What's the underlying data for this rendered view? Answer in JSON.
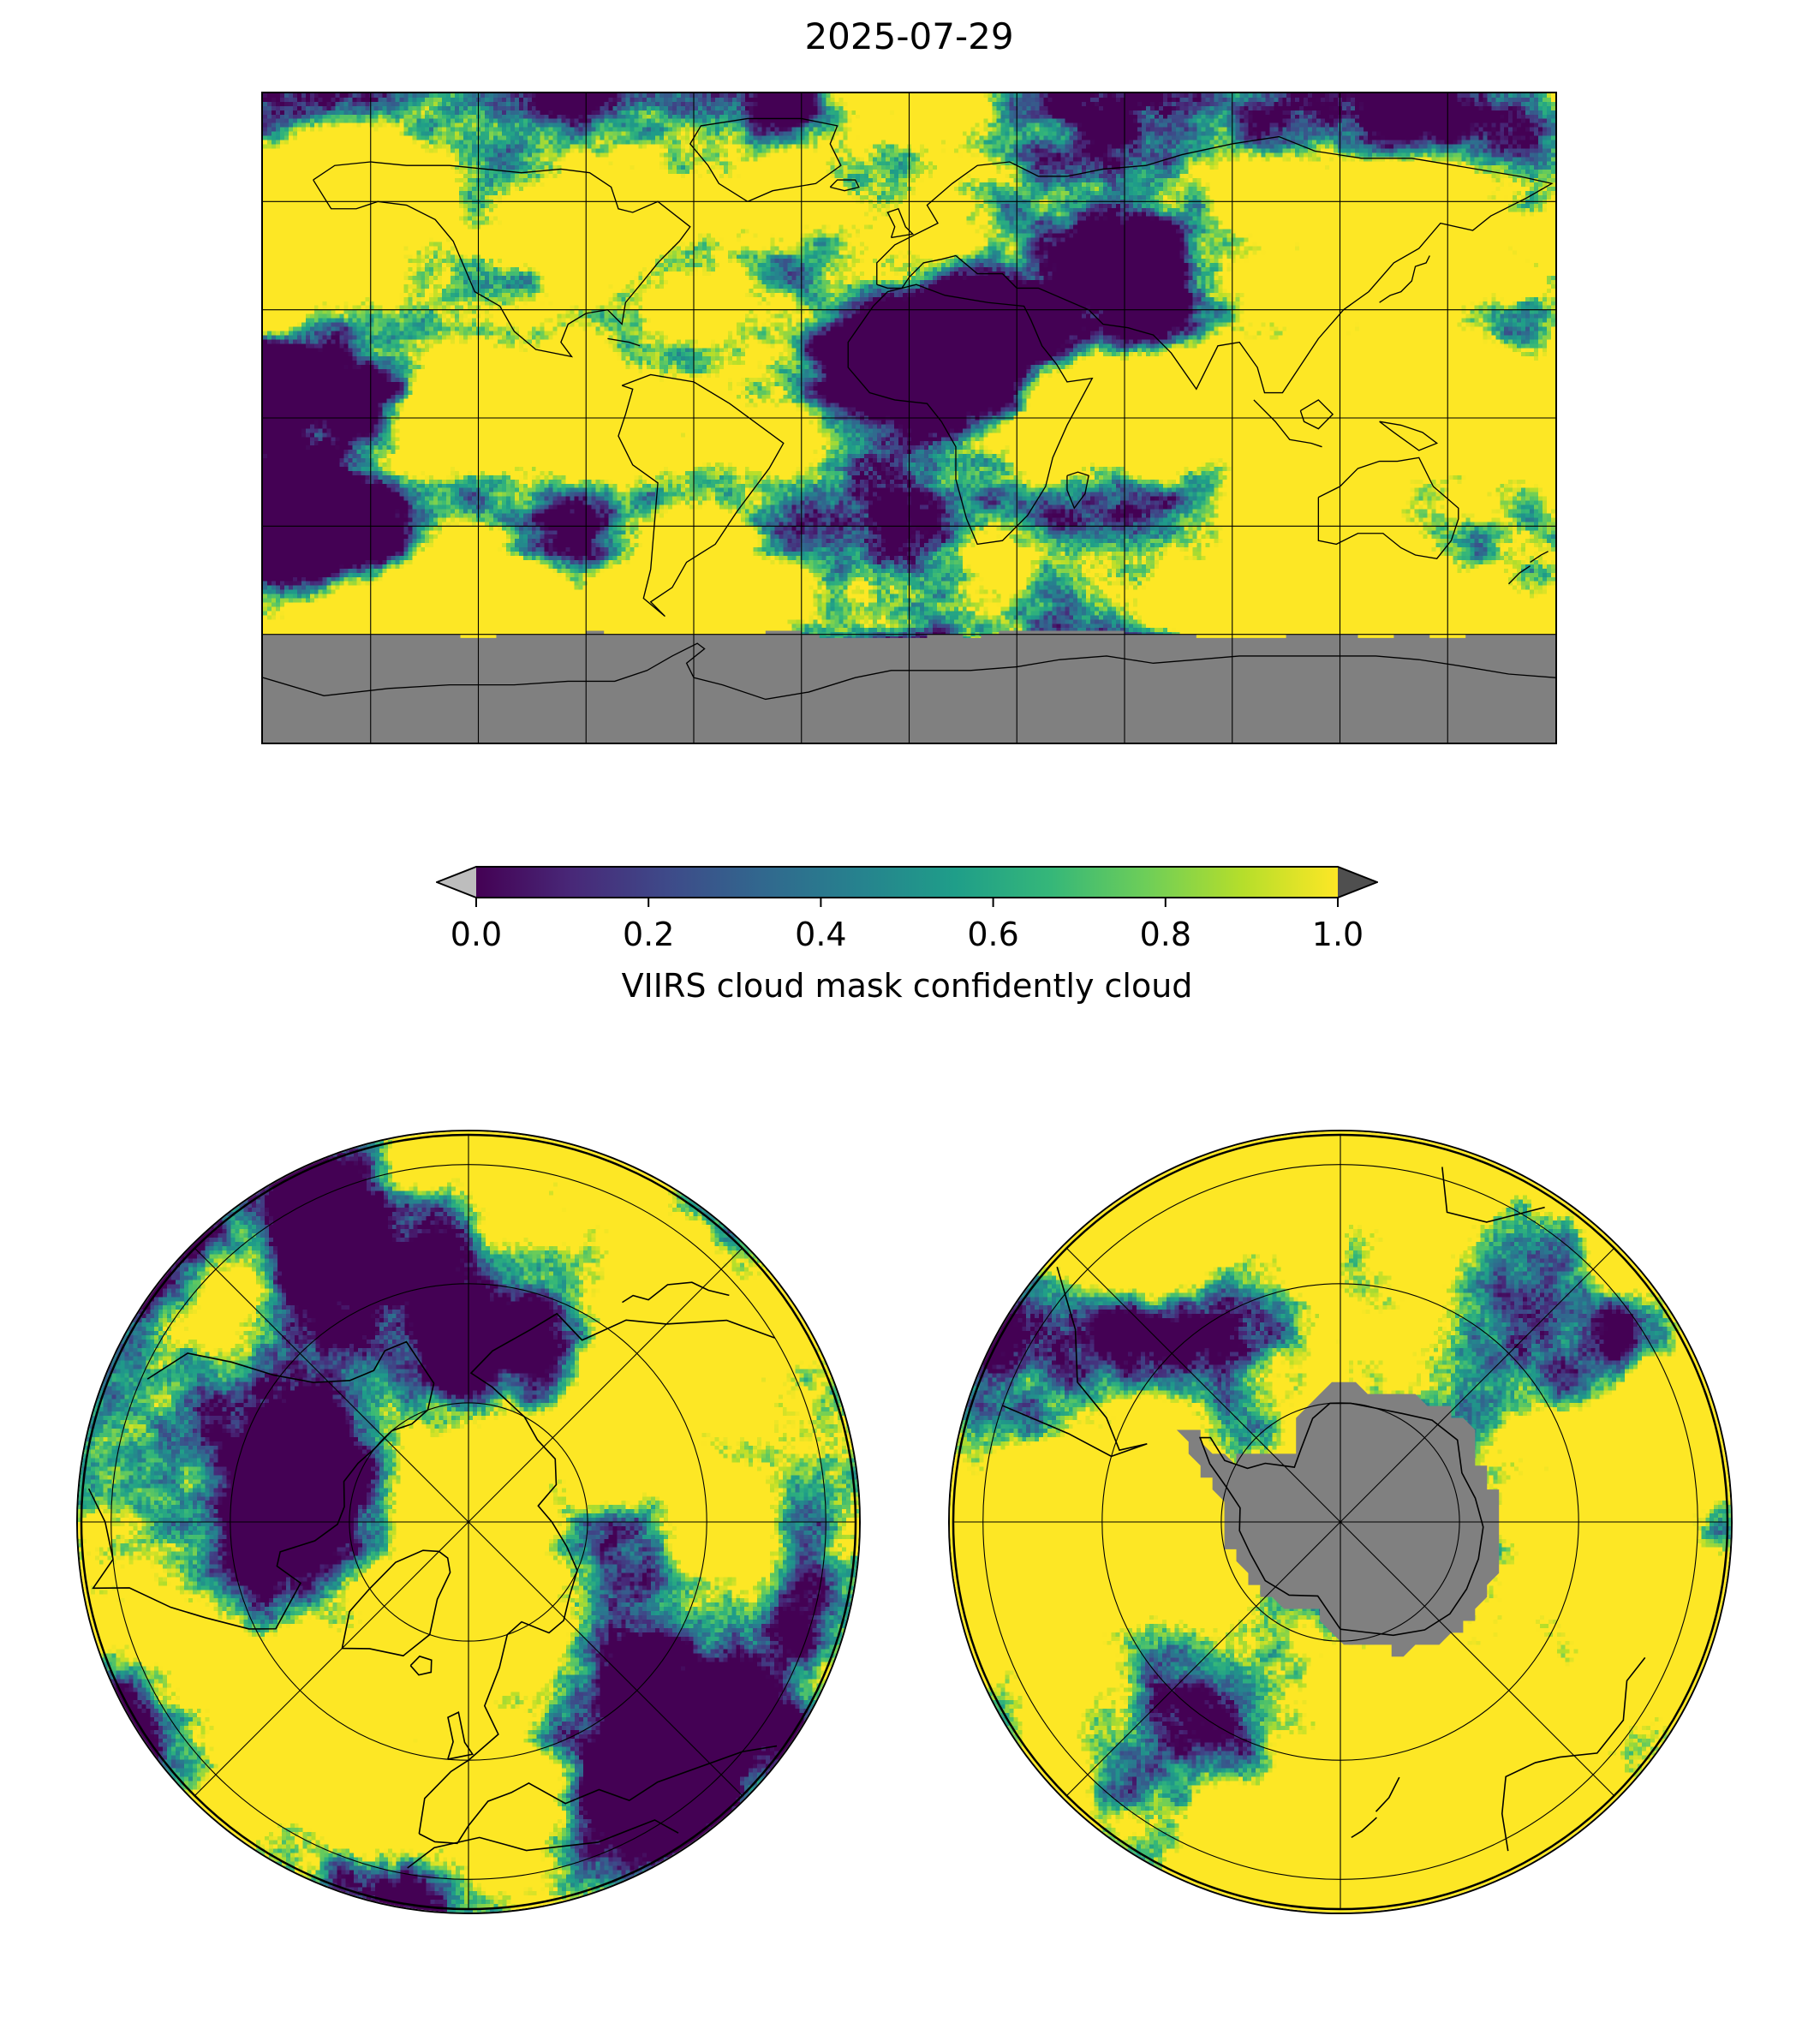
{
  "figure": {
    "title": "2025-07-29",
    "background_color": "#ffffff"
  },
  "colorbar": {
    "label": "VIIRS cloud mask confidently cloud",
    "range": [
      0.0,
      1.0
    ],
    "ticks": [
      {
        "value": 0.0,
        "label": "0.0"
      },
      {
        "value": 0.2,
        "label": "0.2"
      },
      {
        "value": 0.4,
        "label": "0.4"
      },
      {
        "value": 0.6,
        "label": "0.6"
      },
      {
        "value": 0.8,
        "label": "0.8"
      },
      {
        "value": 1.0,
        "label": "1.0"
      }
    ],
    "colormap": "viridis",
    "colormap_stops": [
      "#440154",
      "#482878",
      "#3e4a89",
      "#31688e",
      "#26828e",
      "#1f9e89",
      "#35b779",
      "#6ece58",
      "#b5de2b",
      "#fde725"
    ],
    "under_arrow_color": "#bdbdbd",
    "over_arrow_color": "#4f4f4f",
    "outline_color": "#000000"
  },
  "maps": {
    "world": {
      "projection": "equirectangular",
      "gridline_interval_deg": 30,
      "gridline_color": "#000000",
      "coastline_color": "#000000",
      "nodata_color": "#808080"
    },
    "north_polar": {
      "projection": "north-polar",
      "ring_latitudes_deg": [
        70,
        50,
        30
      ],
      "spoke_interval_deg": 45,
      "gridline_color": "#000000",
      "coastline_color": "#000000"
    },
    "south_polar": {
      "projection": "south-polar",
      "ring_latitudes_deg": [
        -70,
        -50,
        -30
      ],
      "spoke_interval_deg": 45,
      "gridline_color": "#000000",
      "coastline_color": "#000000",
      "nodata_color": "#808080"
    }
  }
}
